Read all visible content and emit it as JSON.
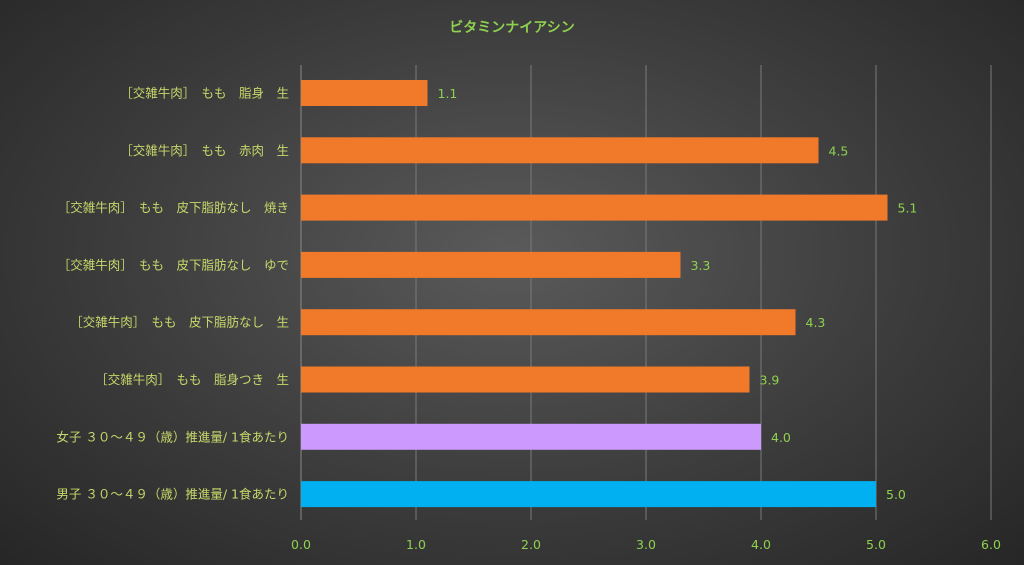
{
  "chart_data": {
    "type": "bar",
    "orientation": "horizontal",
    "title": "ビタミンナイアシン",
    "xlim": [
      0,
      6
    ],
    "ticks": [
      "0.0",
      "1.0",
      "2.0",
      "3.0",
      "4.0",
      "5.0",
      "6.0"
    ],
    "grid": true,
    "categories": [
      "［交雑牛肉］　もも　脂身　生",
      "［交雑牛肉］　もも　赤肉　生",
      "［交雑牛肉］　もも　皮下脂肪なし　焼き",
      "［交雑牛肉］　もも　皮下脂肪なし　ゆで",
      "［交雑牛肉］　もも　皮下脂肪なし　生",
      "［交雑牛肉］　もも　脂身つき　生",
      "女子 ３０～４９（歳）推進量/ 1食あたり",
      "男子 ３０～４９（歳）推進量/ 1食あたり"
    ],
    "values": [
      1.1,
      4.5,
      5.1,
      3.3,
      4.3,
      3.9,
      4.0,
      5.0
    ],
    "value_labels": [
      "1.1",
      "4.5",
      "5.1",
      "3.3",
      "4.3",
      "3.9",
      "4.0",
      "5.0"
    ],
    "colors": [
      "#f07a2a",
      "#f07a2a",
      "#f07a2a",
      "#f07a2a",
      "#f07a2a",
      "#f07a2a",
      "#cc99ff",
      "#00b0f0"
    ]
  }
}
